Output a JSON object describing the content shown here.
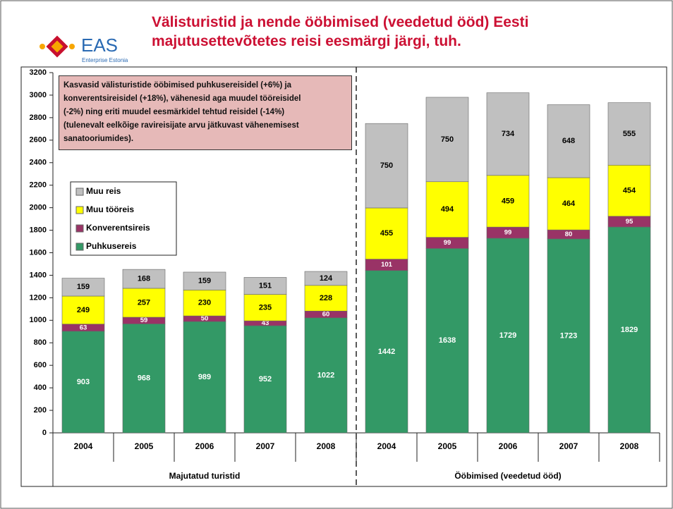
{
  "chart_data": {
    "type": "stacked-bar",
    "title": "Välisturistid ja nende ööbimised (veedetud ööd) Eesti majutusettevõtetes reisi eesmärgi järgi, tuh.",
    "logo": {
      "name": "EAS",
      "subtitle": "Enterprise Estonia"
    },
    "annotation": [
      "Kasvasid välisturistide ööbimised puhkusereisidel (+6%) ja",
      "konverentsireisidel (+18%), vähenesid aga muudel tööreisidel",
      "(-2%) ning eriti muudel eesmärkidel tehtud reisidel (-14%)",
      "(tulenevalt eelkõige ravireisijate arvu jätkuvast vähenemisest",
      "sanatooriumides)."
    ],
    "groups": [
      {
        "name": "Majutatud turistid",
        "categories": [
          "2004",
          "2005",
          "2006",
          "2007",
          "2008"
        ]
      },
      {
        "name": "Ööbimised (veedetud ööd)",
        "categories": [
          "2004",
          "2005",
          "2006",
          "2007",
          "2008"
        ]
      }
    ],
    "series": [
      {
        "name": "Puhkusereis",
        "color": "#339966",
        "values": [
          903,
          968,
          989,
          952,
          1022,
          1442,
          1638,
          1729,
          1723,
          1829
        ]
      },
      {
        "name": "Konverentsireis",
        "color": "#993366",
        "values": [
          63,
          59,
          50,
          43,
          60,
          101,
          99,
          99,
          80,
          95
        ]
      },
      {
        "name": "Muu tööreis",
        "color": "#ffff00",
        "values": [
          249,
          257,
          230,
          235,
          228,
          455,
          494,
          459,
          464,
          454
        ]
      },
      {
        "name": "Muu reis",
        "color": "#c0c0c0",
        "values": [
          159,
          168,
          159,
          151,
          124,
          750,
          750,
          734,
          648,
          555
        ]
      }
    ],
    "ylim": [
      0,
      3200
    ],
    "yticks": [
      0,
      200,
      400,
      600,
      800,
      1000,
      1200,
      1400,
      1600,
      1800,
      2000,
      2200,
      2400,
      2600,
      2800,
      3000,
      3200
    ],
    "grid": false
  }
}
